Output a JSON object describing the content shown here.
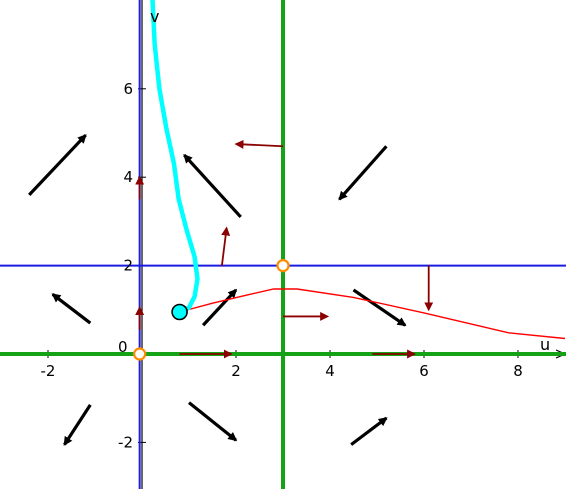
{
  "axes": {
    "x_label": "u",
    "y_label": "v",
    "x_range": [
      -3,
      9
    ],
    "y_range": [
      -3,
      8
    ],
    "x_ticks": [
      {
        "value": -2,
        "label": "-2"
      },
      {
        "value": 2,
        "label": "2"
      },
      {
        "value": 4,
        "label": "4"
      },
      {
        "value": 6,
        "label": "6"
      },
      {
        "value": 8,
        "label": "8"
      }
    ],
    "y_ticks": [
      {
        "value": -2,
        "label": "-2"
      },
      {
        "value": 2,
        "label": "2"
      },
      {
        "value": 4,
        "label": "4"
      },
      {
        "value": 6,
        "label": "6"
      }
    ],
    "origin_label": "0"
  },
  "colors": {
    "axis_and_nullcline_blue": "#1c1ce0",
    "nullcline_green": "#16a216",
    "trajectory_cyan": "#00ffff",
    "direction_field_black": "#000000",
    "nullcline_arrows_darkred": "#8b0000",
    "curve_red": "#ff0000",
    "equilibrium_orange": "#ff8c00",
    "initial_point_fill": "#00ffff"
  },
  "nullclines": {
    "blue": [
      {
        "orientation": "vertical",
        "value": -0.05
      },
      {
        "orientation": "horizontal",
        "value": 2
      }
    ],
    "green": [
      {
        "orientation": "horizontal",
        "value": 0
      },
      {
        "orientation": "vertical",
        "value": 3
      }
    ]
  },
  "equilibria": [
    {
      "u": -0.05,
      "v": 0
    },
    {
      "u": 3,
      "v": 2
    }
  ],
  "initial_point": {
    "u": 0.8,
    "v": 0.95
  },
  "trajectory": [
    [
      0.8,
      0.95
    ],
    [
      1.0,
      1.05
    ],
    [
      1.12,
      1.3
    ],
    [
      1.18,
      1.7
    ],
    [
      1.12,
      2.2
    ],
    [
      0.95,
      2.8
    ],
    [
      0.78,
      3.5
    ],
    [
      0.68,
      4.3
    ],
    [
      0.52,
      5.1
    ],
    [
      0.37,
      6.0
    ],
    [
      0.27,
      7.0
    ],
    [
      0.22,
      8.1
    ]
  ],
  "red_curve": [
    [
      0.8,
      0.95
    ],
    [
      1.5,
      1.15
    ],
    [
      2.3,
      1.35
    ],
    [
      2.8,
      1.47
    ],
    [
      3.3,
      1.47
    ],
    [
      4.5,
      1.28
    ],
    [
      6.0,
      0.93
    ],
    [
      7.8,
      0.48
    ],
    [
      9.0,
      0.35
    ]
  ],
  "direction_field": [
    {
      "from": [
        -2.4,
        3.6
      ],
      "to": [
        -1.2,
        4.95
      ]
    },
    {
      "from": [
        2.1,
        3.1
      ],
      "to": [
        0.9,
        4.5
      ]
    },
    {
      "from": [
        5.2,
        4.7
      ],
      "to": [
        4.2,
        3.5
      ]
    },
    {
      "from": [
        -1.1,
        0.7
      ],
      "to": [
        -1.9,
        1.35
      ]
    },
    {
      "from": [
        1.3,
        0.65
      ],
      "to": [
        2.0,
        1.45
      ]
    },
    {
      "from": [
        4.5,
        1.45
      ],
      "to": [
        5.6,
        0.65
      ]
    },
    {
      "from": [
        -1.1,
        -1.15
      ],
      "to": [
        -1.65,
        -2.05
      ]
    },
    {
      "from": [
        1.0,
        -1.1
      ],
      "to": [
        2.0,
        -1.95
      ]
    },
    {
      "from": [
        4.45,
        -2.05
      ],
      "to": [
        5.2,
        -1.45
      ]
    }
  ],
  "nullcline_arrows": [
    {
      "from": [
        3.0,
        4.7
      ],
      "to": [
        2.0,
        4.75
      ]
    },
    {
      "from": [
        1.7,
        2.0
      ],
      "to": [
        1.8,
        2.85
      ]
    },
    {
      "from": [
        -0.05,
        3.5
      ],
      "to": [
        -0.05,
        4.0
      ]
    },
    {
      "from": [
        -0.05,
        0.55
      ],
      "to": [
        -0.05,
        1.05
      ]
    },
    {
      "from": [
        3.0,
        0.85
      ],
      "to": [
        3.95,
        0.85
      ]
    },
    {
      "from": [
        6.1,
        2.0
      ],
      "to": [
        6.1,
        1.0
      ]
    },
    {
      "from": [
        0.8,
        0.0
      ],
      "to": [
        1.9,
        0.0
      ]
    },
    {
      "from": [
        4.9,
        0.0
      ],
      "to": [
        5.8,
        0.0
      ]
    }
  ]
}
